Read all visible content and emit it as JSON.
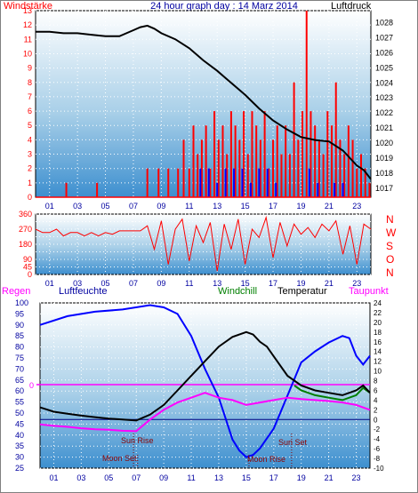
{
  "header": {
    "left_label": "Windstärke",
    "title": "24 hour graph day : 14 Marz 2014",
    "right_label": "Luftdruck"
  },
  "colors": {
    "wind_avg": "#0000ff",
    "wind_gust": "#ff0000",
    "pressure": "#000000",
    "humidity": "#0000ff",
    "dewpoint": "#ff00ff",
    "windchill": "#007f00",
    "temperature": "#000000",
    "direction": "#ff0000",
    "left_axis": "#ff0000",
    "right_axis": "#000000"
  },
  "panel2": {
    "compass": [
      "N",
      "W",
      "S",
      "O",
      "N"
    ]
  },
  "panel3": {
    "labels": {
      "rain": "Regen",
      "humidity": "Luftfeuchte",
      "windchill": "Windchill",
      "temperature": "Temperatur",
      "dewpoint": "Taupunkt"
    },
    "zero_marker": "0",
    "events": {
      "sun_rise": "Sun Rise",
      "sun_set": "Sun Set",
      "moon_set": "Moon Set",
      "moon_rise": "Moon Rise"
    }
  },
  "chart_data": [
    {
      "type": "line",
      "title": "24 hour graph day : 14 Marz 2014",
      "x_ticks": [
        "01",
        "03",
        "05",
        "07",
        "09",
        "11",
        "13",
        "15",
        "17",
        "19",
        "21",
        "23"
      ],
      "xlim": [
        0,
        24
      ],
      "ylim_left": [
        0,
        13
      ],
      "yticks_left": [
        0,
        1,
        2,
        3,
        4,
        5,
        6,
        7,
        8,
        9,
        10,
        11,
        12,
        13
      ],
      "ylim_right": [
        1016.4,
        1028.8
      ],
      "yticks_right": [
        1017,
        1018,
        1019,
        1020,
        1021,
        1022,
        1023,
        1024,
        1025,
        1026,
        1027,
        1028
      ],
      "series": [
        {
          "name": "Windstärke",
          "style": "bars",
          "x": [
            2.2,
            4.4,
            8.0,
            8.8,
            9.5,
            10.2,
            10.6,
            11.0,
            11.3,
            11.6,
            11.9,
            12.2,
            12.5,
            12.8,
            13.1,
            13.4,
            13.7,
            14.0,
            14.3,
            14.6,
            14.9,
            15.2,
            15.5,
            15.8,
            16.1,
            16.4,
            16.7,
            17.0,
            17.3,
            17.6,
            17.9,
            18.2,
            18.5,
            18.8,
            19.1,
            19.4,
            19.7,
            20.0,
            20.3,
            20.6,
            20.9,
            21.2,
            21.5,
            21.8,
            22.1,
            22.4,
            22.7,
            23.0,
            23.3,
            23.6,
            23.9
          ],
          "values": [
            1,
            1,
            2,
            2,
            2,
            2,
            4,
            2,
            5,
            3,
            4,
            5,
            2,
            6,
            4,
            5,
            3,
            6,
            5,
            4,
            6,
            3,
            6,
            5,
            4,
            6,
            2,
            4,
            5,
            3,
            5,
            3,
            8,
            4,
            6,
            13,
            6,
            5,
            4,
            3,
            6,
            5,
            8,
            4,
            3,
            5,
            4,
            2,
            3,
            2,
            1
          ]
        },
        {
          "name": "Wind avg",
          "style": "bars",
          "x": [
            11.8,
            12.4,
            13.0,
            13.6,
            14.2,
            14.8,
            15.4,
            16.0,
            16.6,
            17.2,
            19.6,
            20.2,
            21.4,
            22.0
          ],
          "values": [
            2,
            2,
            1,
            2,
            2,
            2,
            1,
            2,
            2,
            1,
            2,
            1,
            1,
            1
          ]
        },
        {
          "name": "Luftdruck",
          "style": "line",
          "x": [
            0,
            1,
            2,
            3,
            4,
            5,
            6,
            7,
            7.5,
            8,
            8.5,
            9,
            10,
            11,
            12,
            13,
            14,
            15,
            16,
            17,
            18,
            19,
            20,
            21,
            22,
            23,
            23.5,
            24
          ],
          "values": [
            1027.4,
            1027.4,
            1027.3,
            1027.3,
            1027.2,
            1027.1,
            1027.1,
            1027.5,
            1027.7,
            1027.8,
            1027.6,
            1027.3,
            1026.9,
            1026.3,
            1025.5,
            1024.8,
            1024.0,
            1023.2,
            1022.3,
            1021.5,
            1020.9,
            1020.4,
            1020.2,
            1020.1,
            1019.5,
            1018.5,
            1018.2,
            1017.6
          ]
        }
      ]
    },
    {
      "type": "line",
      "title": "",
      "x_ticks": [
        "01",
        "03",
        "05",
        "07",
        "09",
        "11",
        "13",
        "15",
        "17",
        "19",
        "21",
        "23"
      ],
      "xlim": [
        0,
        24
      ],
      "ylim": [
        0,
        360
      ],
      "yticks": [
        0,
        45,
        90,
        135,
        180,
        225,
        270,
        315,
        360
      ],
      "series": [
        {
          "name": "Windrichtung",
          "x": [
            0,
            0.5,
            1.0,
            1.5,
            2.0,
            2.5,
            3.0,
            3.5,
            4.0,
            4.5,
            5.0,
            5.5,
            6.0,
            6.5,
            7.0,
            7.5,
            8.0,
            8.5,
            9.0,
            9.5,
            10.0,
            10.5,
            11.0,
            11.5,
            12.0,
            12.5,
            13.0,
            13.5,
            14.0,
            14.5,
            15.0,
            15.5,
            16.0,
            16.5,
            17.0,
            17.5,
            18.0,
            18.5,
            19.0,
            19.5,
            20.0,
            20.5,
            21.0,
            21.5,
            22.0,
            22.5,
            23.0,
            23.5,
            24.0
          ],
          "values": [
            270,
            250,
            250,
            270,
            230,
            250,
            250,
            230,
            250,
            230,
            250,
            240,
            260,
            260,
            260,
            260,
            290,
            150,
            320,
            60,
            270,
            330,
            80,
            290,
            190,
            310,
            20,
            300,
            150,
            330,
            60,
            270,
            220,
            340,
            100,
            310,
            170,
            300,
            240,
            280,
            220,
            300,
            260,
            320,
            120,
            290,
            60,
            300,
            270
          ]
        }
      ]
    },
    {
      "type": "line",
      "title": "",
      "x_ticks": [
        "01",
        "03",
        "05",
        "07",
        "09",
        "11",
        "13",
        "15",
        "17",
        "19",
        "21",
        "23"
      ],
      "xlim": [
        0,
        24
      ],
      "ylim_left": [
        25,
        100
      ],
      "yticks_left": [
        100,
        95,
        90,
        85,
        80,
        75,
        70,
        65,
        60,
        55,
        50,
        45,
        40,
        35,
        30,
        25
      ],
      "ylim_right": [
        -10,
        24
      ],
      "yticks_right": [
        24,
        22,
        20,
        18,
        16,
        14,
        12,
        10,
        8,
        6,
        4,
        2,
        0,
        -2,
        -4,
        -6,
        -8,
        -10
      ],
      "series": [
        {
          "name": "Luftfeuchte",
          "axis": "left",
          "x": [
            0,
            2,
            4,
            6,
            8,
            9,
            10,
            11,
            12,
            13,
            14,
            14.5,
            15,
            15.5,
            16,
            17,
            18,
            19,
            20,
            21,
            22,
            22.5,
            23,
            23.5,
            24
          ],
          "values": [
            90,
            94,
            96,
            97,
            99,
            98,
            95,
            85,
            70,
            57,
            38,
            33,
            30,
            31,
            34,
            43,
            58,
            73,
            78,
            82,
            85,
            84,
            76,
            72,
            76
          ]
        },
        {
          "name": "Temperatur",
          "axis": "right",
          "x": [
            0,
            1,
            2,
            3,
            4,
            5,
            6,
            7,
            8,
            9,
            10,
            11,
            12,
            13,
            14,
            15,
            15.5,
            16,
            16.5,
            17,
            18,
            19,
            20,
            21,
            22,
            23,
            23.5,
            24
          ],
          "values": [
            2.5,
            1.6,
            1.2,
            0.8,
            0.5,
            0.2,
            0.0,
            -0.2,
            1.0,
            3.0,
            6.0,
            9.0,
            12.0,
            15.0,
            17.0,
            18.0,
            17.5,
            16.0,
            15.0,
            13.0,
            9.0,
            7.0,
            6.0,
            5.5,
            5.0,
            6.0,
            7.0,
            5.5
          ]
        },
        {
          "name": "Taupunkt",
          "axis": "right",
          "x": [
            0,
            1,
            2,
            3,
            4,
            5,
            6,
            7,
            8,
            9,
            10,
            11,
            12,
            13,
            14,
            15,
            16,
            17,
            18,
            19,
            20,
            21,
            22,
            23,
            24
          ],
          "values": [
            -1.0,
            -1.3,
            -1.5,
            -1.8,
            -2.0,
            -2.1,
            -2.3,
            -2.4,
            0.0,
            2.0,
            3.5,
            4.5,
            5.5,
            4.5,
            4.0,
            3.0,
            3.5,
            4.0,
            4.5,
            4.2,
            4.0,
            3.8,
            3.5,
            3.0,
            2.0
          ]
        },
        {
          "name": "Windchill",
          "axis": "right",
          "x": [
            18.5,
            19,
            20,
            21,
            22,
            23,
            23.5,
            24
          ],
          "values": [
            7.0,
            6.0,
            5.0,
            4.5,
            4.0,
            5.0,
            6.5,
            5.5
          ]
        }
      ],
      "events": [
        {
          "label": "Sun Rise",
          "x": 6.8
        },
        {
          "label": "Sun Set",
          "x": 18.3
        },
        {
          "label": "Moon Set",
          "x": 7.1
        },
        {
          "label": "Moon Rise",
          "x": 15.2
        }
      ]
    }
  ]
}
